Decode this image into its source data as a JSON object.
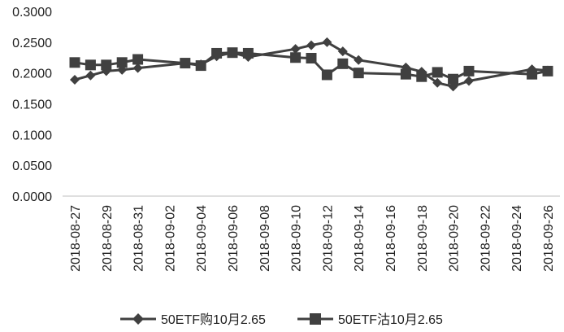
{
  "chart_data": {
    "type": "line",
    "title": "",
    "xlabel": "",
    "ylabel": "",
    "ylim": [
      0,
      0.3
    ],
    "y_ticks": [
      "0.0000",
      "0.0500",
      "0.1000",
      "0.1500",
      "0.2000",
      "0.2500",
      "0.3000"
    ],
    "x_range": [
      "2018-08-27",
      "2018-09-26"
    ],
    "x_ticks": [
      "2018-08-27",
      "2018-08-29",
      "2018-08-31",
      "2018-09-02",
      "2018-09-04",
      "2018-09-06",
      "2018-09-08",
      "2018-09-10",
      "2018-09-12",
      "2018-09-14",
      "2018-09-16",
      "2018-09-18",
      "2018-09-20",
      "2018-09-22",
      "2018-09-24",
      "2018-09-26"
    ],
    "grid": false,
    "legend_position": "bottom",
    "series": [
      {
        "name": "50ETF购10月2.65",
        "marker": "diamond",
        "color": "#404040",
        "points": [
          {
            "x": "2018-08-27",
            "y": 0.189
          },
          {
            "x": "2018-08-28",
            "y": 0.196
          },
          {
            "x": "2018-08-29",
            "y": 0.203
          },
          {
            "x": "2018-08-30",
            "y": 0.205
          },
          {
            "x": "2018-08-31",
            "y": 0.208
          },
          {
            "x": "2018-09-03",
            "y": 0.216
          },
          {
            "x": "2018-09-04",
            "y": 0.214
          },
          {
            "x": "2018-09-05",
            "y": 0.227
          },
          {
            "x": "2018-09-06",
            "y": 0.233
          },
          {
            "x": "2018-09-07",
            "y": 0.226
          },
          {
            "x": "2018-09-10",
            "y": 0.239
          },
          {
            "x": "2018-09-11",
            "y": 0.245
          },
          {
            "x": "2018-09-12",
            "y": 0.25
          },
          {
            "x": "2018-09-13",
            "y": 0.235
          },
          {
            "x": "2018-09-14",
            "y": 0.221
          },
          {
            "x": "2018-09-17",
            "y": 0.209
          },
          {
            "x": "2018-09-18",
            "y": 0.202
          },
          {
            "x": "2018-09-19",
            "y": 0.184
          },
          {
            "x": "2018-09-20",
            "y": 0.178
          },
          {
            "x": "2018-09-21",
            "y": 0.187
          },
          {
            "x": "2018-09-25",
            "y": 0.206
          },
          {
            "x": "2018-09-26",
            "y": 0.204
          }
        ]
      },
      {
        "name": "50ETF沽10月2.65",
        "marker": "square",
        "color": "#404040",
        "points": [
          {
            "x": "2018-08-27",
            "y": 0.217
          },
          {
            "x": "2018-08-28",
            "y": 0.213
          },
          {
            "x": "2018-08-29",
            "y": 0.213
          },
          {
            "x": "2018-08-30",
            "y": 0.217
          },
          {
            "x": "2018-08-31",
            "y": 0.222
          },
          {
            "x": "2018-09-03",
            "y": 0.216
          },
          {
            "x": "2018-09-04",
            "y": 0.212
          },
          {
            "x": "2018-09-05",
            "y": 0.232
          },
          {
            "x": "2018-09-06",
            "y": 0.233
          },
          {
            "x": "2018-09-07",
            "y": 0.232
          },
          {
            "x": "2018-09-10",
            "y": 0.225
          },
          {
            "x": "2018-09-11",
            "y": 0.224
          },
          {
            "x": "2018-09-12",
            "y": 0.197
          },
          {
            "x": "2018-09-13",
            "y": 0.215
          },
          {
            "x": "2018-09-14",
            "y": 0.2
          },
          {
            "x": "2018-09-17",
            "y": 0.198
          },
          {
            "x": "2018-09-18",
            "y": 0.194
          },
          {
            "x": "2018-09-19",
            "y": 0.201
          },
          {
            "x": "2018-09-20",
            "y": 0.19
          },
          {
            "x": "2018-09-21",
            "y": 0.203
          },
          {
            "x": "2018-09-25",
            "y": 0.198
          },
          {
            "x": "2018-09-26",
            "y": 0.203
          }
        ]
      }
    ]
  }
}
